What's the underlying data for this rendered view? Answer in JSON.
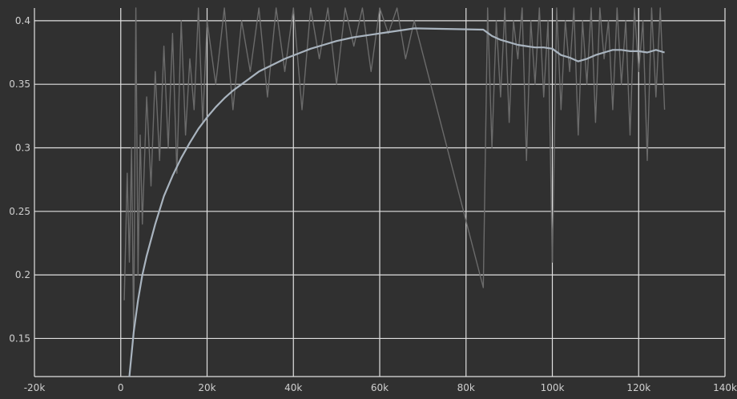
{
  "chart_data": {
    "type": "line",
    "title": "",
    "xlabel": "",
    "ylabel": "",
    "xlim": [
      -20000,
      140000
    ],
    "ylim": [
      0.12,
      0.41
    ],
    "grid": true,
    "legend": "none",
    "x_ticks": [
      -20000,
      0,
      20000,
      40000,
      60000,
      80000,
      100000,
      120000,
      140000
    ],
    "x_tick_labels": [
      "-20k",
      "0",
      "20k",
      "40k",
      "60k",
      "80k",
      "100k",
      "120k",
      "140k"
    ],
    "y_ticks": [
      0.15,
      0.2,
      0.25,
      0.3,
      0.35,
      0.4
    ],
    "y_tick_labels": [
      "0.15",
      "0.2",
      "0.25",
      "0.3",
      "0.35",
      "0.4"
    ],
    "colors": {
      "background": "#303030",
      "grid": "#e0e0e0",
      "raw": "#6b6b6b",
      "smoothed": "#a9b4bf"
    },
    "series": [
      {
        "style": "raw",
        "x": [
          800,
          1500,
          2000,
          2500,
          3000,
          3500,
          4000,
          4500,
          5000,
          6000,
          7000,
          8000,
          9000,
          10000,
          11000,
          12000,
          13000,
          14000,
          15000,
          16000,
          17000,
          18000,
          19000,
          20000,
          22000,
          24000,
          26000,
          28000,
          30000,
          32000,
          34000,
          36000,
          38000,
          40000,
          42000,
          44000,
          46000,
          48000,
          50000,
          52000,
          54000,
          56000,
          58000,
          60000,
          62000,
          64000,
          66000,
          68000,
          84000,
          85000,
          86000,
          87000,
          88000,
          89000,
          90000,
          91000,
          92000,
          93000,
          94000,
          95000,
          96000,
          97000,
          98000,
          99000,
          100000,
          101000,
          102000,
          103000,
          104000,
          105000,
          106000,
          107000,
          108000,
          109000,
          110000,
          111000,
          112000,
          113000,
          114000,
          115000,
          116000,
          117000,
          118000,
          119000,
          120000,
          121000,
          122000,
          123000,
          124000,
          125000,
          126000
        ],
        "y": [
          0.18,
          0.28,
          0.21,
          0.3,
          0.15,
          0.41,
          0.2,
          0.31,
          0.24,
          0.34,
          0.27,
          0.36,
          0.29,
          0.38,
          0.3,
          0.39,
          0.28,
          0.4,
          0.31,
          0.37,
          0.33,
          0.41,
          0.32,
          0.4,
          0.35,
          0.41,
          0.33,
          0.4,
          0.36,
          0.41,
          0.34,
          0.41,
          0.36,
          0.41,
          0.33,
          0.41,
          0.37,
          0.41,
          0.35,
          0.41,
          0.38,
          0.41,
          0.36,
          0.41,
          0.39,
          0.41,
          0.37,
          0.4,
          0.19,
          0.41,
          0.3,
          0.4,
          0.34,
          0.41,
          0.32,
          0.4,
          0.37,
          0.41,
          0.29,
          0.4,
          0.35,
          0.41,
          0.34,
          0.4,
          0.21,
          0.41,
          0.33,
          0.4,
          0.36,
          0.41,
          0.31,
          0.4,
          0.35,
          0.41,
          0.32,
          0.41,
          0.37,
          0.4,
          0.33,
          0.41,
          0.35,
          0.4,
          0.31,
          0.41,
          0.36,
          0.4,
          0.29,
          0.41,
          0.34,
          0.41,
          0.33
        ]
      },
      {
        "style": "smoothed",
        "x": [
          2000,
          3000,
          4000,
          5000,
          6000,
          8000,
          10000,
          12000,
          14000,
          16000,
          18000,
          20000,
          22000,
          24000,
          26000,
          28000,
          30000,
          32000,
          35000,
          38000,
          41000,
          44000,
          47000,
          50000,
          54000,
          58000,
          62000,
          66000,
          68000,
          84000,
          86000,
          88000,
          90000,
          92000,
          94000,
          96000,
          98000,
          100000,
          102000,
          104000,
          106000,
          108000,
          110000,
          112000,
          114000,
          116000,
          118000,
          120000,
          122000,
          124000,
          126000
        ],
        "y": [
          0.12,
          0.155,
          0.18,
          0.2,
          0.215,
          0.24,
          0.262,
          0.278,
          0.292,
          0.304,
          0.315,
          0.324,
          0.332,
          0.339,
          0.345,
          0.35,
          0.355,
          0.36,
          0.365,
          0.37,
          0.374,
          0.378,
          0.381,
          0.384,
          0.387,
          0.389,
          0.391,
          0.393,
          0.394,
          0.393,
          0.388,
          0.385,
          0.383,
          0.381,
          0.38,
          0.379,
          0.379,
          0.378,
          0.373,
          0.371,
          0.368,
          0.37,
          0.373,
          0.375,
          0.377,
          0.377,
          0.376,
          0.376,
          0.375,
          0.377,
          0.375
        ]
      }
    ]
  }
}
